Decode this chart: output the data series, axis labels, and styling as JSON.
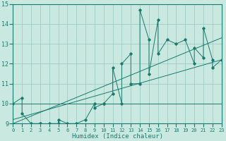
{
  "title": "",
  "xlabel": "Humidex (Indice chaleur)",
  "x_data": [
    0,
    1,
    1,
    2,
    3,
    3,
    4,
    4,
    5,
    5,
    6,
    7,
    8,
    9,
    9,
    10,
    10,
    11,
    11,
    12,
    12,
    13,
    13,
    14,
    14,
    15,
    15,
    16,
    16,
    17,
    18,
    19,
    20,
    20,
    21,
    21,
    22,
    22,
    23
  ],
  "y_data": [
    10.0,
    10.3,
    9.5,
    9.0,
    9.0,
    9.0,
    8.8,
    9.0,
    9.0,
    9.2,
    9.0,
    9.0,
    9.2,
    10.0,
    9.8,
    10.0,
    10.0,
    10.5,
    11.8,
    10.0,
    12.0,
    12.5,
    11.0,
    11.0,
    14.7,
    13.2,
    11.5,
    14.2,
    12.5,
    13.2,
    13.0,
    13.2,
    12.0,
    12.8,
    12.3,
    13.8,
    12.2,
    11.8,
    12.2
  ],
  "line_color": "#1a7a6e",
  "bg_color": "#c8e8e0",
  "grid_color": "#96c8be",
  "tick_color": "#1a7a6e",
  "xlim": [
    0,
    23
  ],
  "ylim": [
    9,
    15
  ],
  "yticks": [
    9,
    10,
    11,
    12,
    13,
    14,
    15
  ],
  "xticks": [
    0,
    1,
    2,
    3,
    4,
    5,
    6,
    7,
    8,
    9,
    10,
    11,
    12,
    13,
    14,
    15,
    16,
    17,
    18,
    19,
    20,
    21,
    22,
    23
  ],
  "trend1_x": [
    0,
    23
  ],
  "trend1_y": [
    10.0,
    10.0
  ],
  "trend2_x": [
    0,
    23
  ],
  "trend2_y": [
    9.2,
    12.2
  ],
  "trend3_x": [
    0,
    23
  ],
  "trend3_y": [
    9.0,
    13.3
  ]
}
